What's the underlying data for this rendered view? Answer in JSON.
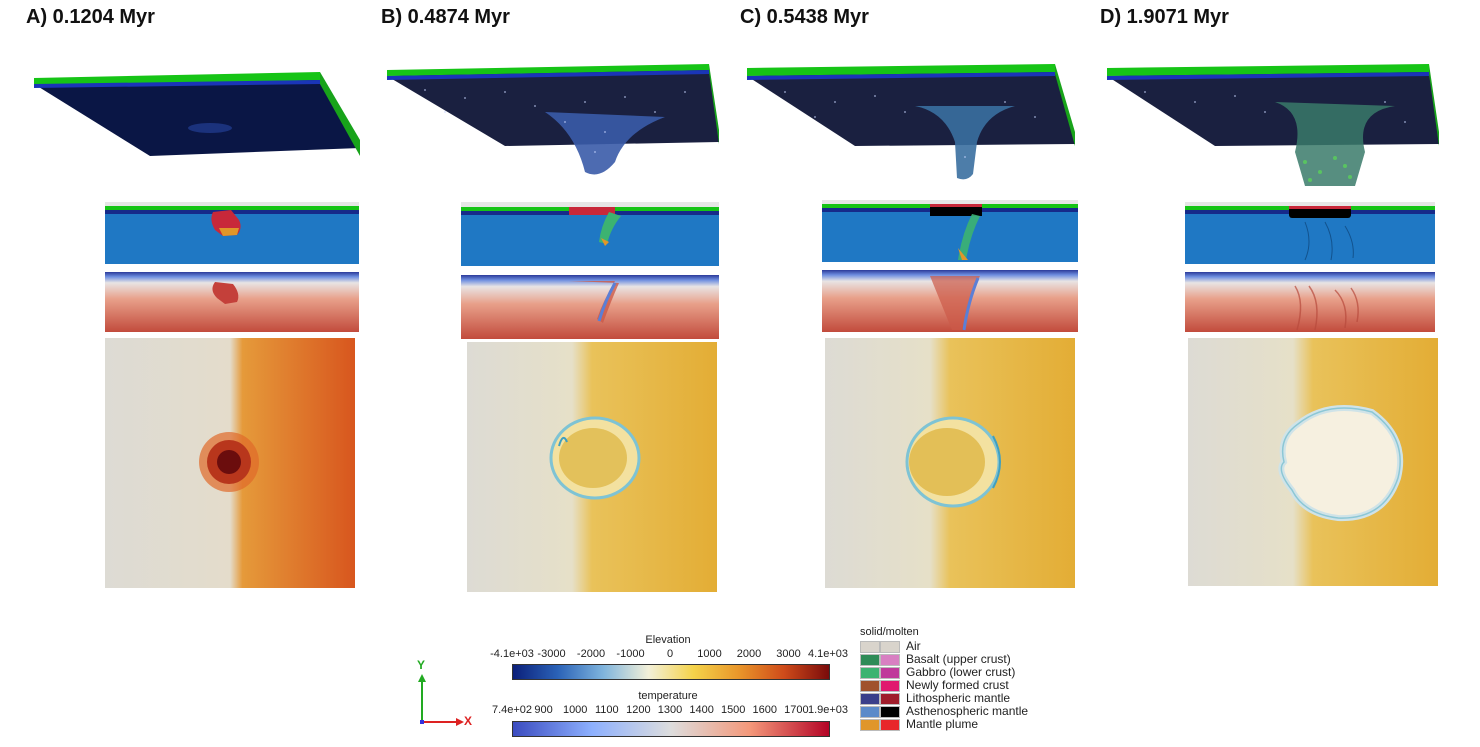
{
  "panels": [
    {
      "title": "A) 0.1204 Myr"
    },
    {
      "title": "B) 0.4874 Myr"
    },
    {
      "title": "C) 0.5438 Myr"
    },
    {
      "title": "D) 1.9071 Myr"
    }
  ],
  "colorbars": {
    "elevation": {
      "title": "Elevation",
      "ticks": [
        "-4.1e+03",
        "-3000",
        "-2000",
        "-1000",
        "0",
        "1000",
        "2000",
        "3000",
        "4.1e+03"
      ],
      "colors": [
        "#0b1f7a",
        "#2b63b8",
        "#7fb4dd",
        "#f3f0d9",
        "#f4d34a",
        "#e9962a",
        "#cf4b1a",
        "#7a0b0b"
      ]
    },
    "temperature": {
      "title": "temperature",
      "ticks": [
        "7.4e+02",
        "900",
        "1000",
        "1100",
        "1200",
        "1300",
        "1400",
        "1500",
        "1600",
        "1700",
        "1.9e+03"
      ],
      "colors": [
        "#3b4cc0",
        "#8db0fe",
        "#dddddd",
        "#f4987a",
        "#b40426"
      ]
    }
  },
  "legend": {
    "title": "solid/molten",
    "items": [
      {
        "label": "Air",
        "solid": "#d9d4cc",
        "molten": "#d9d4cc"
      },
      {
        "label": "Basalt (upper crust)",
        "solid": "#2e8b57",
        "molten": "#d87fc2"
      },
      {
        "label": "Gabbro (lower crust)",
        "solid": "#3cb371",
        "molten": "#c0399b"
      },
      {
        "label": "Newly formed crust",
        "solid": "#a0522d",
        "molten": "#e0186e"
      },
      {
        "label": "Lithospheric mantle",
        "solid": "#3a3f8a",
        "molten": "#a01d2b"
      },
      {
        "label": "Asthenospheric mantle",
        "solid": "#5b8ac9",
        "molten": "#000000"
      },
      {
        "label": "Mantle plume",
        "solid": "#e0962a",
        "molten": "#e8262a"
      }
    ]
  },
  "axes": {
    "y": "Y",
    "x": "X"
  }
}
